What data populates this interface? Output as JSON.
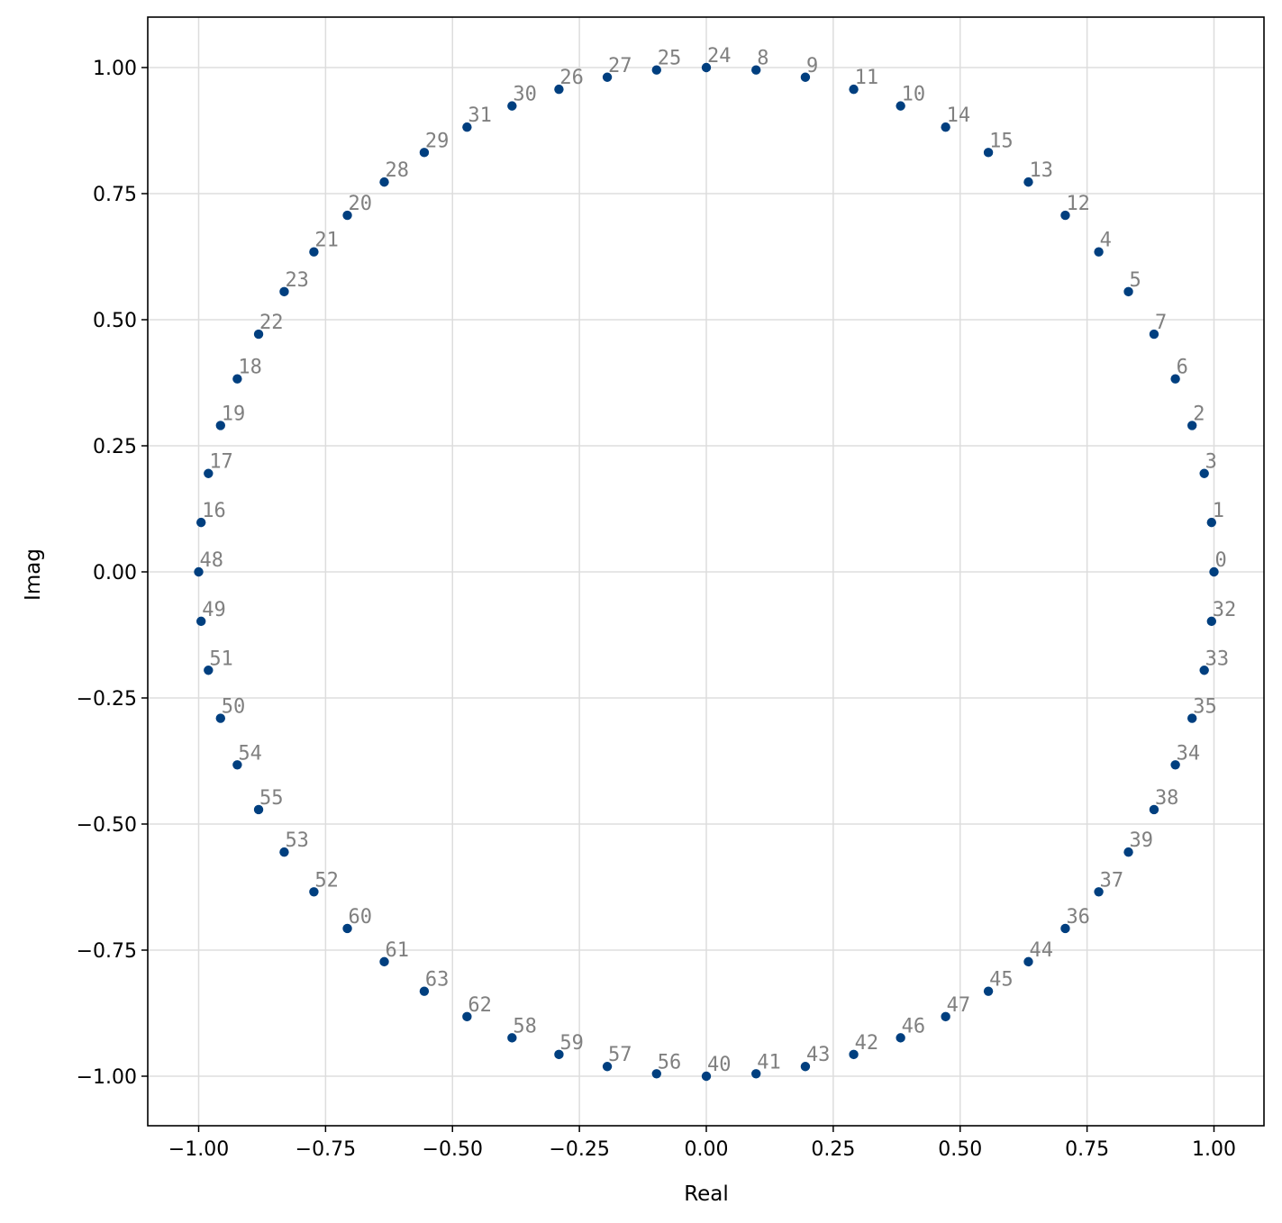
{
  "chart_data": {
    "type": "scatter",
    "title": "",
    "xlabel": "Real",
    "ylabel": "Imag",
    "xlim": [
      -1.1,
      1.1
    ],
    "ylim": [
      -1.1,
      1.1
    ],
    "xticks": [
      "−1.00",
      "−0.75",
      "−0.50",
      "−0.25",
      "0.00",
      "0.25",
      "0.50",
      "0.75",
      "1.00"
    ],
    "yticks": [
      "−1.00",
      "−0.75",
      "−0.50",
      "−0.25",
      "0.00",
      "0.25",
      "0.50",
      "0.75",
      "1.00"
    ],
    "grid": true,
    "colors": {
      "marker": "#003f7f",
      "point_label": "#808080",
      "grid": "#dddddd",
      "axes": "#000000"
    },
    "points": [
      {
        "label": "0",
        "x": 1.0,
        "y": 0.0
      },
      {
        "label": "1",
        "x": 0.9952,
        "y": 0.098
      },
      {
        "label": "2",
        "x": 0.9569,
        "y": 0.2903
      },
      {
        "label": "3",
        "x": 0.9808,
        "y": 0.1951
      },
      {
        "label": "4",
        "x": 0.773,
        "y": 0.6344
      },
      {
        "label": "5",
        "x": 0.8315,
        "y": 0.5556
      },
      {
        "label": "6",
        "x": 0.9239,
        "y": 0.3827
      },
      {
        "label": "7",
        "x": 0.8819,
        "y": 0.4714
      },
      {
        "label": "8",
        "x": 0.098,
        "y": 0.9952
      },
      {
        "label": "9",
        "x": 0.1951,
        "y": 0.9808
      },
      {
        "label": "10",
        "x": 0.3827,
        "y": 0.9239
      },
      {
        "label": "11",
        "x": 0.2903,
        "y": 0.9569
      },
      {
        "label": "12",
        "x": 0.7071,
        "y": 0.7071
      },
      {
        "label": "13",
        "x": 0.6344,
        "y": 0.773
      },
      {
        "label": "14",
        "x": 0.4714,
        "y": 0.8819
      },
      {
        "label": "15",
        "x": 0.5556,
        "y": 0.8315
      },
      {
        "label": "16",
        "x": -0.9952,
        "y": 0.098
      },
      {
        "label": "17",
        "x": -0.9808,
        "y": 0.1951
      },
      {
        "label": "18",
        "x": -0.9239,
        "y": 0.3827
      },
      {
        "label": "19",
        "x": -0.9569,
        "y": 0.2903
      },
      {
        "label": "20",
        "x": -0.7071,
        "y": 0.7071
      },
      {
        "label": "21",
        "x": -0.773,
        "y": 0.6344
      },
      {
        "label": "22",
        "x": -0.8819,
        "y": 0.4714
      },
      {
        "label": "23",
        "x": -0.8315,
        "y": 0.5556
      },
      {
        "label": "24",
        "x": 0.0,
        "y": 1.0
      },
      {
        "label": "25",
        "x": -0.098,
        "y": 0.9952
      },
      {
        "label": "26",
        "x": -0.2903,
        "y": 0.9569
      },
      {
        "label": "27",
        "x": -0.1951,
        "y": 0.9808
      },
      {
        "label": "28",
        "x": -0.6344,
        "y": 0.773
      },
      {
        "label": "29",
        "x": -0.5556,
        "y": 0.8315
      },
      {
        "label": "30",
        "x": -0.3827,
        "y": 0.9239
      },
      {
        "label": "31",
        "x": -0.4714,
        "y": 0.8819
      },
      {
        "label": "32",
        "x": 0.9952,
        "y": -0.098
      },
      {
        "label": "33",
        "x": 0.9808,
        "y": -0.1951
      },
      {
        "label": "34",
        "x": 0.9239,
        "y": -0.3827
      },
      {
        "label": "35",
        "x": 0.9569,
        "y": -0.2903
      },
      {
        "label": "36",
        "x": 0.7071,
        "y": -0.7071
      },
      {
        "label": "37",
        "x": 0.773,
        "y": -0.6344
      },
      {
        "label": "38",
        "x": 0.8819,
        "y": -0.4714
      },
      {
        "label": "39",
        "x": 0.8315,
        "y": -0.5556
      },
      {
        "label": "40",
        "x": 0.0,
        "y": -1.0
      },
      {
        "label": "41",
        "x": 0.098,
        "y": -0.9952
      },
      {
        "label": "42",
        "x": 0.2903,
        "y": -0.9569
      },
      {
        "label": "43",
        "x": 0.1951,
        "y": -0.9808
      },
      {
        "label": "44",
        "x": 0.6344,
        "y": -0.773
      },
      {
        "label": "45",
        "x": 0.5556,
        "y": -0.8315
      },
      {
        "label": "46",
        "x": 0.3827,
        "y": -0.9239
      },
      {
        "label": "47",
        "x": 0.4714,
        "y": -0.8819
      },
      {
        "label": "48",
        "x": -1.0,
        "y": 0.0
      },
      {
        "label": "49",
        "x": -0.9952,
        "y": -0.098
      },
      {
        "label": "50",
        "x": -0.9569,
        "y": -0.2903
      },
      {
        "label": "51",
        "x": -0.9808,
        "y": -0.1951
      },
      {
        "label": "52",
        "x": -0.773,
        "y": -0.6344
      },
      {
        "label": "53",
        "x": -0.8315,
        "y": -0.5556
      },
      {
        "label": "54",
        "x": -0.9239,
        "y": -0.3827
      },
      {
        "label": "55",
        "x": -0.8819,
        "y": -0.4714
      },
      {
        "label": "56",
        "x": -0.098,
        "y": -0.9952
      },
      {
        "label": "57",
        "x": -0.1951,
        "y": -0.9808
      },
      {
        "label": "58",
        "x": -0.3827,
        "y": -0.9239
      },
      {
        "label": "59",
        "x": -0.2903,
        "y": -0.9569
      },
      {
        "label": "60",
        "x": -0.7071,
        "y": -0.7071
      },
      {
        "label": "61",
        "x": -0.6344,
        "y": -0.773
      },
      {
        "label": "62",
        "x": -0.4714,
        "y": -0.8819
      },
      {
        "label": "63",
        "x": -0.5556,
        "y": -0.8315
      }
    ]
  }
}
